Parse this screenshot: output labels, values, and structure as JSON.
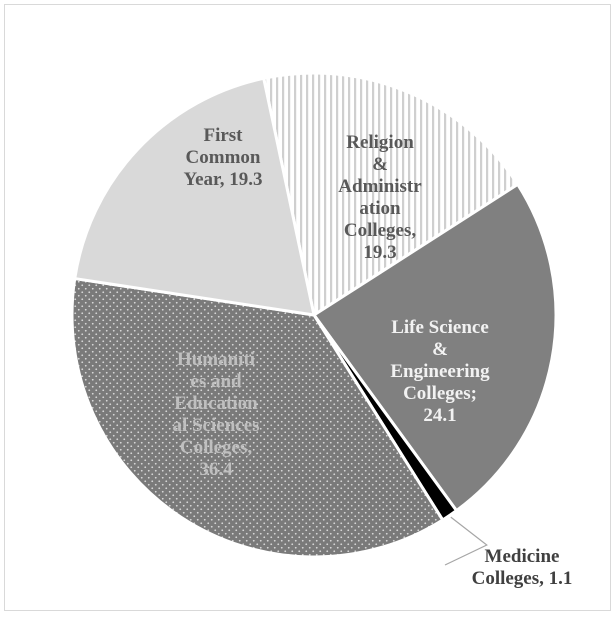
{
  "chart_data": {
    "type": "pie",
    "title": "",
    "legend": "none",
    "slices": [
      {
        "name": "Religion & Administration Colleges",
        "value": 19.3,
        "label_lines": [
          "Religion",
          "&",
          "Administr",
          "ation",
          "Colleges,",
          "19.3"
        ],
        "fill": "hatch-vertical",
        "label_color": "#595959"
      },
      {
        "name": "Life Science & Engineering Colleges",
        "value": 24.1,
        "label_lines": [
          "Life Science",
          "&",
          "Engineering",
          "Colleges;",
          "24.1"
        ],
        "fill": "#808080",
        "label_color": "#f2f2f2"
      },
      {
        "name": "Medicine Colleges",
        "value": 1.1,
        "label_lines": [
          "Medicine",
          "Colleges, 1.1"
        ],
        "fill": "#000000",
        "label_color": "#404040"
      },
      {
        "name": "Humanities and Educational Sciences Colleges",
        "value": 36.4,
        "label_lines": [
          "Humaniti",
          "es and",
          "Education",
          "al Sciences",
          "Colleges,",
          "36.4"
        ],
        "fill": "dots",
        "label_color": "#bfbfbf"
      },
      {
        "name": "First Common Year",
        "value": 19.3,
        "label_lines": [
          "First",
          "Common",
          "Year, 19.3"
        ],
        "fill": "#d9d9d9",
        "label_color": "#595959"
      }
    ]
  }
}
